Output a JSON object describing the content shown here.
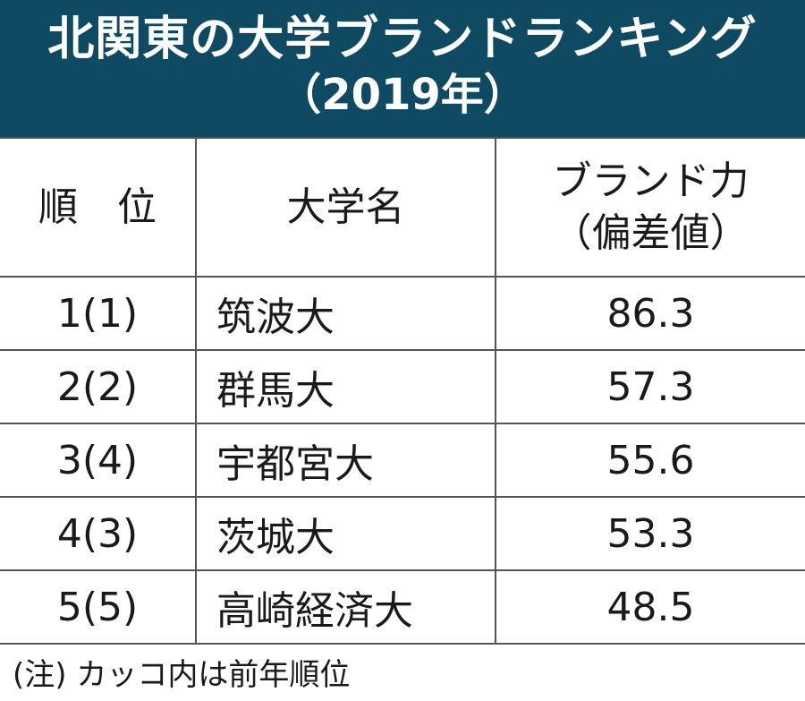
{
  "title": {
    "line1": "北関東の大学ブランドランキング",
    "line2": "（2019年）"
  },
  "headers": {
    "rank": "順　位",
    "name": "大学名",
    "score_line1": "ブランド力",
    "score_line2": "（偏差値）"
  },
  "rows": [
    {
      "rank": "1(1)",
      "name": "筑波大",
      "score": "86.3"
    },
    {
      "rank": "2(2)",
      "name": "群馬大",
      "score": "57.3"
    },
    {
      "rank": "3(4)",
      "name": "宇都宮大",
      "score": "55.6"
    },
    {
      "rank": "4(3)",
      "name": "茨城大",
      "score": "53.3"
    },
    {
      "rank": "5(5)",
      "name": "高崎経済大",
      "score": "48.5"
    }
  ],
  "note": "(注) カッコ内は前年順位",
  "colors": {
    "header_bg": "#0f4a63"
  }
}
